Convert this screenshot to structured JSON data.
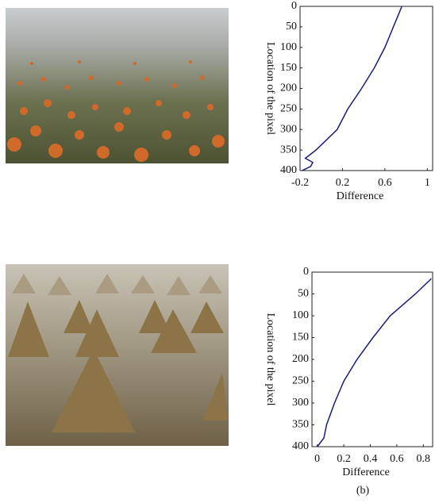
{
  "chart_data": [
    {
      "type": "line",
      "x_label": "Difference",
      "y_label": "Location of the pixel",
      "locations": [
        0,
        25,
        50,
        100,
        150,
        200,
        250,
        300,
        350,
        370,
        380,
        390,
        400
      ],
      "values": [
        0.76,
        0.72,
        0.68,
        0.6,
        0.5,
        0.38,
        0.25,
        0.15,
        -0.05,
        -0.15,
        -0.08,
        -0.1,
        -0.18
      ],
      "color": "#1c1c78",
      "xlim": [
        -0.2,
        1.05
      ],
      "xticks": [
        -0.2,
        0.2,
        0.6,
        1.0
      ],
      "ylim": [
        0,
        400
      ],
      "yticks": [
        0,
        50,
        100,
        150,
        200,
        250,
        300,
        350,
        400
      ],
      "y_inverted": true
    },
    {
      "type": "line",
      "x_label": "Difference",
      "y_label": "Location of the pixel",
      "caption": "(b)",
      "locations": [
        15,
        50,
        100,
        150,
        200,
        250,
        300,
        350,
        380,
        400
      ],
      "values": [
        0.86,
        0.74,
        0.55,
        0.42,
        0.3,
        0.2,
        0.13,
        0.07,
        0.05,
        0.0
      ],
      "color": "#1c1c78",
      "xlim": [
        -0.04,
        0.87
      ],
      "xticks": [
        0.0,
        0.2,
        0.4,
        0.6,
        0.8
      ],
      "ylim": [
        0,
        400
      ],
      "yticks": [
        0,
        50,
        100,
        150,
        200,
        250,
        300,
        350,
        400
      ],
      "y_inverted": true
    }
  ]
}
